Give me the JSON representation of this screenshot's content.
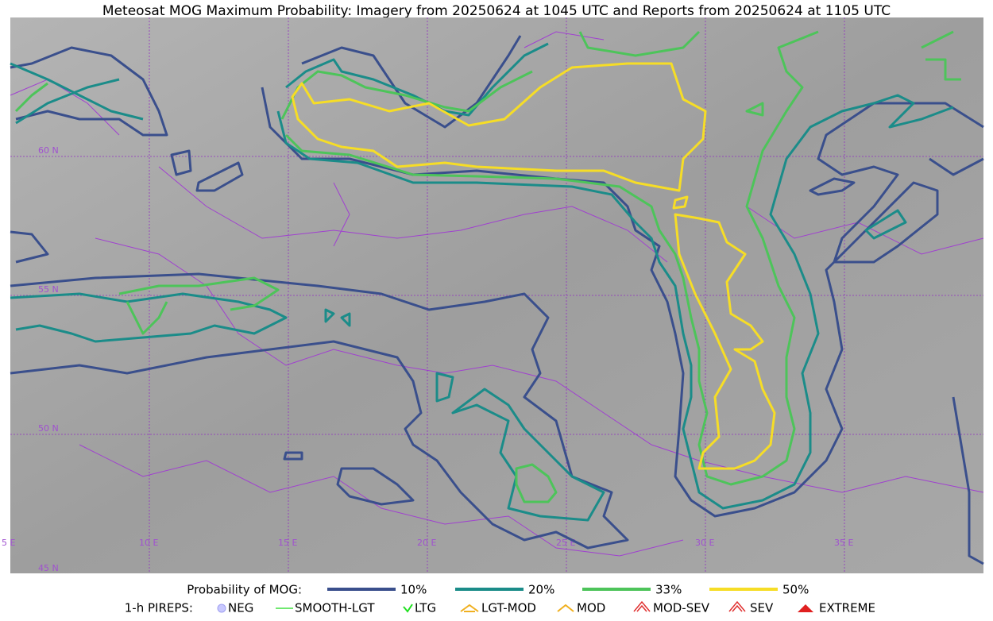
{
  "header": {
    "title": "Meteosat MOG Maximum Probability: Imagery from 20250624 at 1045 UTC and Reports from 20250624 at 1105 UTC"
  },
  "map": {
    "lat_labels": [
      "60 N",
      "55 N",
      "50 N",
      "45 N"
    ],
    "lon_labels": [
      "5 E",
      "10 E",
      "15 E",
      "20 E",
      "25 E",
      "30 E",
      "35 E"
    ]
  },
  "legend": {
    "title": "Probability of MOG:",
    "levels": [
      {
        "label": "10%",
        "color": "#3a4f8c"
      },
      {
        "label": "20%",
        "color": "#1b8c89"
      },
      {
        "label": "33%",
        "color": "#4dc45a"
      },
      {
        "label": "50%",
        "color": "#f6dd26"
      }
    ]
  },
  "pireps": {
    "title": "1-h PIREPS:",
    "items": [
      "NEG",
      "SMOOTH-LGT",
      "LTG",
      "LGT-MOD",
      "MOD",
      "MOD-SEV",
      "SEV",
      "EXTREME"
    ]
  }
}
